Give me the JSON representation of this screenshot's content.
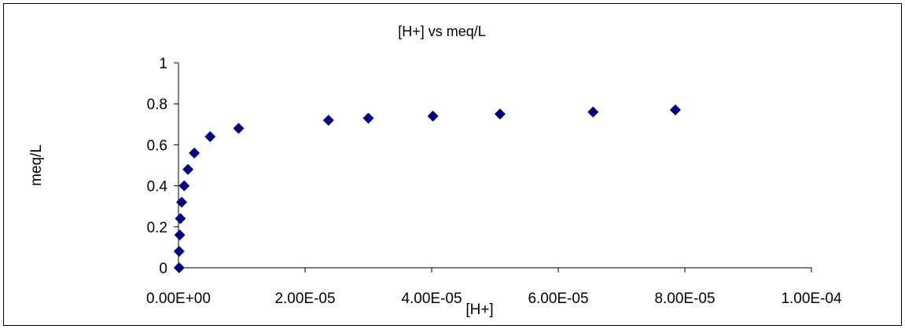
{
  "chart_data": {
    "type": "scatter",
    "title": "[H+] vs meq/L",
    "xlabel": "[H+]",
    "ylabel": "meq/L",
    "xlim": [
      0,
      0.0001
    ],
    "ylim": [
      0,
      1
    ],
    "x_ticks": [
      {
        "value": 0,
        "label": "0.00E+00"
      },
      {
        "value": 2e-05,
        "label": "2.00E-05"
      },
      {
        "value": 4e-05,
        "label": "4.00E-05"
      },
      {
        "value": 6e-05,
        "label": "6.00E-05"
      },
      {
        "value": 8e-05,
        "label": "8.00E-05"
      },
      {
        "value": 0.0001,
        "label": "1.00E-04"
      }
    ],
    "y_ticks": [
      {
        "value": 0,
        "label": "0"
      },
      {
        "value": 0.2,
        "label": "0.2"
      },
      {
        "value": 0.4,
        "label": "0.4"
      },
      {
        "value": 0.6,
        "label": "0.6"
      },
      {
        "value": 0.8,
        "label": "0.8"
      },
      {
        "value": 1,
        "label": "1"
      }
    ],
    "grid": false,
    "legend": false,
    "marker": "diamond",
    "marker_color": "#000080",
    "points": [
      {
        "x": 1e-07,
        "y": 0.0
      },
      {
        "x": 1e-07,
        "y": 0.08
      },
      {
        "x": 2e-07,
        "y": 0.16
      },
      {
        "x": 3e-07,
        "y": 0.24
      },
      {
        "x": 5e-07,
        "y": 0.32
      },
      {
        "x": 9e-07,
        "y": 0.4
      },
      {
        "x": 1.5e-06,
        "y": 0.48
      },
      {
        "x": 2.5e-06,
        "y": 0.56
      },
      {
        "x": 5e-06,
        "y": 0.64
      },
      {
        "x": 9.5e-06,
        "y": 0.68
      },
      {
        "x": 2.37e-05,
        "y": 0.72
      },
      {
        "x": 3e-05,
        "y": 0.73
      },
      {
        "x": 4.02e-05,
        "y": 0.74
      },
      {
        "x": 5.08e-05,
        "y": 0.75
      },
      {
        "x": 6.55e-05,
        "y": 0.76
      },
      {
        "x": 7.85e-05,
        "y": 0.77
      }
    ]
  }
}
